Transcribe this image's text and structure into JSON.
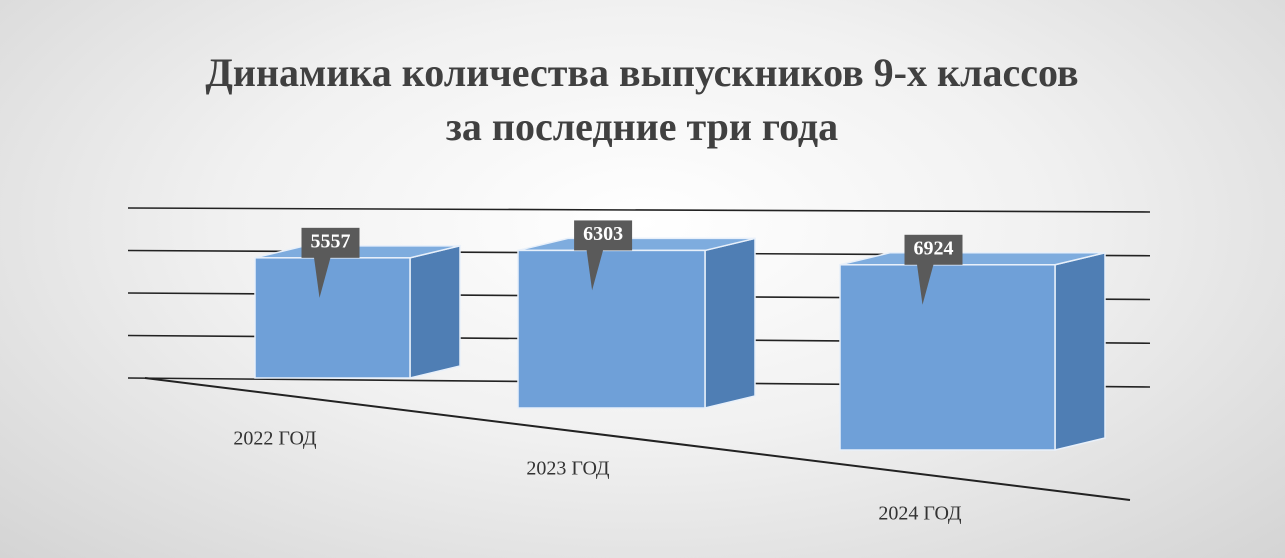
{
  "chart_data": {
    "type": "bar3d",
    "title": "Динамика количества выпускников 9-х классов за последние три года",
    "categories": [
      "2022 ГОД",
      "2023 ГОД",
      "2024 ГОД"
    ],
    "values": [
      5557,
      6303,
      6924
    ],
    "color": "#6fa0d8",
    "ylim": [
      0,
      8000
    ],
    "yticks": [
      0,
      2000,
      4000,
      6000,
      8000
    ],
    "grid": true
  }
}
